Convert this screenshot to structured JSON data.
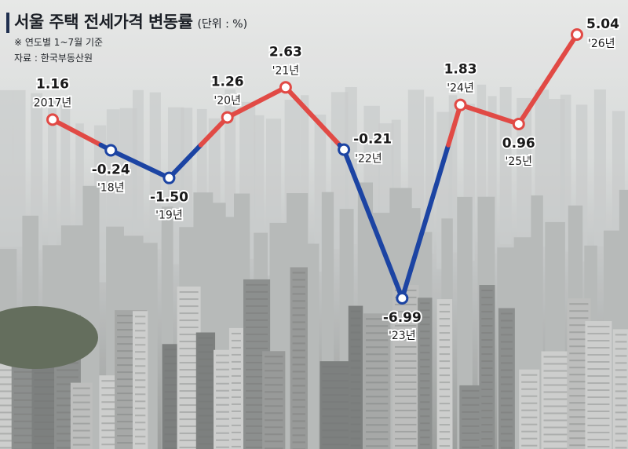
{
  "header": {
    "title": "서울 주택 전세가격 변동률",
    "unit": "(단위 : %)",
    "note": "※ 연도별 1~7월 기준",
    "source": "자료 : 한국부동산원"
  },
  "colors": {
    "rise": "#e14a45",
    "fall": "#1c44a3",
    "title_bar": "#1f2f4f"
  },
  "chart_data": {
    "type": "line",
    "title": "서울 주택 전세가격 변동률",
    "unit": "%",
    "x": [
      "2017년",
      "'18년",
      "'19년",
      "'20년",
      "'21년",
      "'22년",
      "'23년",
      "'24년",
      "'25년",
      "'26년"
    ],
    "values": [
      1.16,
      -0.24,
      -1.5,
      1.26,
      2.63,
      -0.21,
      -6.99,
      1.83,
      0.96,
      5.04
    ],
    "value_labels": [
      "1.16",
      "-0.24",
      "-1.50",
      "1.26",
      "2.63",
      "-0.21",
      "-6.99",
      "1.83",
      "0.96",
      "5.04"
    ],
    "grid": false,
    "legend": "none"
  }
}
